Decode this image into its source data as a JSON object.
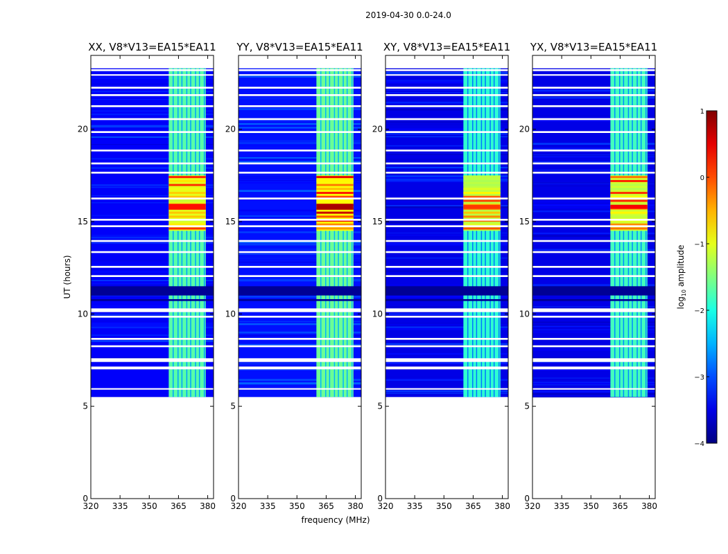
{
  "chart_data": {
    "type": "heatmap",
    "suptitle": "2019-04-30 0.0-24.0",
    "xlabel": "frequency (MHz)",
    "ylabel": "UT (hours)",
    "colorbar": {
      "label": "log",
      "label_sub": "10",
      "label_rest": " amplitude",
      "range": [
        -4,
        1
      ],
      "ticks": [
        1,
        0,
        -1,
        -2,
        -3,
        -4
      ],
      "tick_labels": [
        "1",
        "0",
        "−1",
        "−2",
        "−3",
        "−4"
      ],
      "colormap": "jet"
    },
    "xlim": [
      320,
      383
    ],
    "ylim": [
      0,
      24
    ],
    "xticks": [
      320,
      335,
      350,
      365,
      380
    ],
    "xtick_labels": [
      "320",
      "335",
      "350",
      "365",
      "380"
    ],
    "yticks": [
      0,
      5,
      10,
      15,
      20
    ],
    "ytick_labels": [
      "0",
      "5",
      "10",
      "15",
      "20"
    ],
    "data_time_range_hours": [
      5.5,
      23.3
    ],
    "rfi_band_mhz": [
      360,
      379
    ],
    "bright_interval_hours": [
      14.5,
      17.5
    ],
    "peak_hours": 15.8,
    "panels": [
      {
        "title": "XX, V8*V13=EA15*EA11",
        "background_level": -3.4,
        "band_level": -1.7,
        "peak_level": 0.3
      },
      {
        "title": "YY, V8*V13=EA15*EA11",
        "background_level": -3.3,
        "band_level": -1.6,
        "peak_level": 0.8
      },
      {
        "title": "XY, V8*V13=EA15*EA11",
        "background_level": -3.5,
        "band_level": -1.9,
        "peak_level": 0.1
      },
      {
        "title": "YX, V8*V13=EA15*EA11",
        "background_level": -3.5,
        "band_level": -1.8,
        "peak_level": 0.4
      }
    ]
  }
}
